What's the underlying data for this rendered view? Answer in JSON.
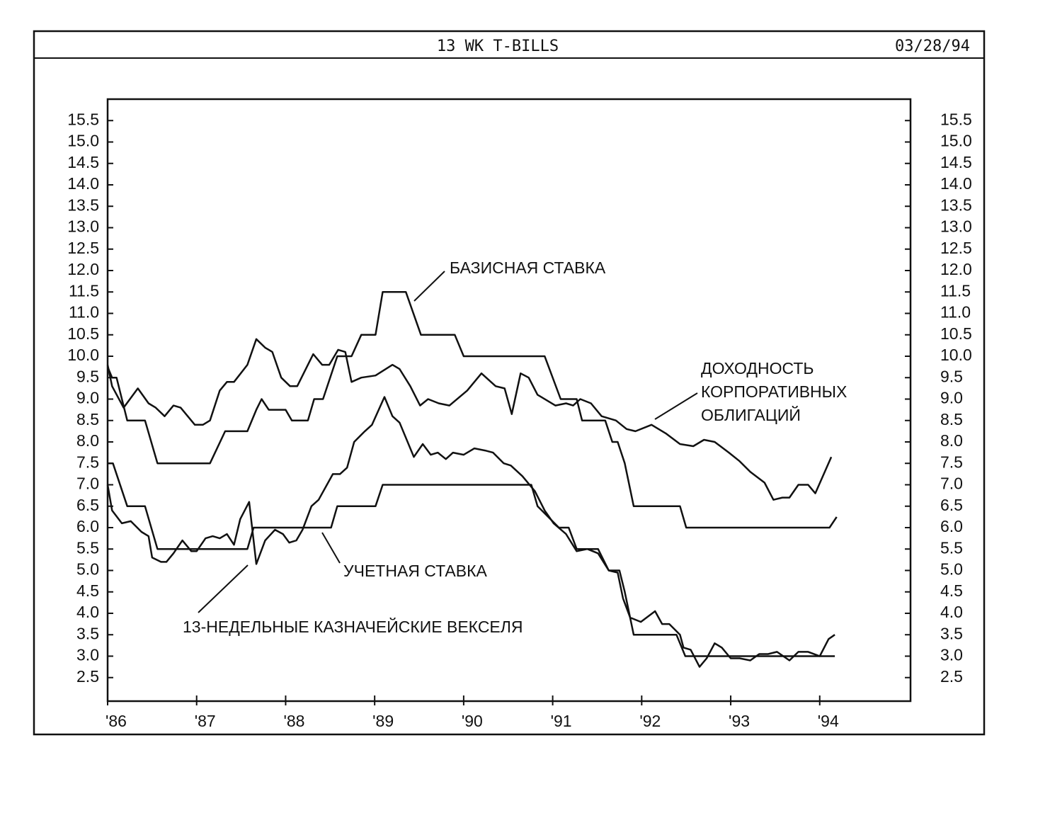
{
  "chart_data": {
    "type": "line",
    "title": "13 WK T-BILLS",
    "date": "03/28/94",
    "xlim": [
      1986,
      1995.02
    ],
    "xticks": [
      {
        "value": 1986,
        "label": "'86"
      },
      {
        "value": 1987,
        "label": "'87"
      },
      {
        "value": 1988,
        "label": "'88"
      },
      {
        "value": 1989,
        "label": "'89"
      },
      {
        "value": 1990,
        "label": "'90"
      },
      {
        "value": 1991,
        "label": "'91"
      },
      {
        "value": 1992,
        "label": "'92"
      },
      {
        "value": 1993,
        "label": "'93"
      },
      {
        "value": 1994,
        "label": "'94"
      }
    ],
    "ylim": [
      1.95,
      16.0
    ],
    "yticks": [
      2.5,
      {
        "value": 3,
        "label": "3.0"
      },
      3.5,
      {
        "value": 4,
        "label": "4.0"
      },
      4.5,
      {
        "value": 5,
        "label": "5.0"
      },
      5.5,
      {
        "value": 6,
        "label": "6.0"
      },
      6.5,
      {
        "value": 7,
        "label": "7.0"
      },
      7.5,
      {
        "value": 8,
        "label": "8.0"
      },
      8.5,
      {
        "value": 9,
        "label": "9.0"
      },
      9.5,
      {
        "value": 10,
        "label": "10.0"
      },
      10.5,
      {
        "value": 11,
        "label": "11.0"
      },
      11.5,
      {
        "value": 12,
        "label": "12.0"
      },
      12.5,
      {
        "value": 13,
        "label": "13.0"
      },
      13.5,
      {
        "value": 14,
        "label": "14.0"
      },
      14.5,
      {
        "value": 15,
        "label": "15.0"
      },
      15.5
    ],
    "y2lim": [
      1.95,
      16.0
    ],
    "y2ticks": [
      2.5,
      {
        "value": 3,
        "label": "3.0"
      },
      3.5,
      {
        "value": 4,
        "label": "4.0"
      },
      4.5,
      {
        "value": 5,
        "label": "5.0"
      },
      5.5,
      {
        "value": 6,
        "label": "6.0"
      },
      6.5,
      {
        "value": 7,
        "label": "7.0"
      },
      7.5,
      {
        "value": 8,
        "label": "8.0"
      },
      8.5,
      {
        "value": 9,
        "label": "9.0"
      },
      9.5,
      {
        "value": 10,
        "label": "10.0"
      },
      10.5,
      {
        "value": 11,
        "label": "11.0"
      },
      11.5,
      {
        "value": 12,
        "label": "12.0"
      },
      12.5,
      {
        "value": 13,
        "label": "13.0"
      },
      13.5,
      {
        "value": 14,
        "label": "14.0"
      },
      14.5,
      {
        "value": 15,
        "label": "15.0"
      },
      15.5
    ],
    "grid": false,
    "series": [
      {
        "label": [
          "БАЗИСНАЯ СТАВКА"
        ],
        "color": "#111111",
        "x": [
          1986.0,
          1986.05,
          1986.1,
          1986.22,
          1986.42,
          1986.56,
          1987.15,
          1987.32,
          1987.57,
          1987.67,
          1987.73,
          1987.81,
          1988.0,
          1988.07,
          1988.25,
          1988.32,
          1988.42,
          1988.58,
          1988.74,
          1988.85,
          1989.01,
          1989.09,
          1989.35,
          1989.52,
          1989.9,
          1990.0,
          1990.91,
          1991.09,
          1991.27,
          1991.33,
          1991.59,
          1991.67,
          1991.73,
          1991.81,
          1991.91,
          1992.43,
          1992.5,
          1994.11,
          1994.19
        ],
        "values": [
          9.75,
          9.5,
          9.5,
          8.5,
          8.5,
          7.5,
          7.5,
          8.25,
          8.25,
          8.75,
          9.0,
          8.75,
          8.75,
          8.5,
          8.5,
          9.0,
          9.0,
          10.0,
          10.0,
          10.5,
          10.5,
          11.5,
          11.5,
          10.5,
          10.5,
          10.0,
          10.0,
          9.0,
          9.0,
          8.5,
          8.5,
          8.0,
          8.0,
          7.5,
          6.5,
          6.5,
          6.0,
          6.0,
          6.25
        ]
      },
      {
        "label": [
          "ДОХОДНОСТЬ",
          "КОРПОРАТИВНЫХ",
          "ОБЛИГАЦИЙ"
        ],
        "color": "#111111",
        "x": [
          1986.0,
          1986.05,
          1986.18,
          1986.34,
          1986.46,
          1986.54,
          1986.64,
          1986.74,
          1986.82,
          1986.98,
          1987.07,
          1987.15,
          1987.26,
          1987.34,
          1987.42,
          1987.57,
          1987.67,
          1987.77,
          1987.85,
          1987.95,
          1988.05,
          1988.13,
          1988.31,
          1988.41,
          1988.49,
          1988.59,
          1988.67,
          1988.74,
          1988.85,
          1989.01,
          1989.2,
          1989.28,
          1989.4,
          1989.51,
          1989.6,
          1989.72,
          1989.84,
          1990.04,
          1990.2,
          1990.36,
          1990.46,
          1990.54,
          1990.64,
          1990.73,
          1990.83,
          1991.03,
          1991.15,
          1991.23,
          1991.31,
          1991.43,
          1991.55,
          1991.71,
          1991.83,
          1991.93,
          1992.11,
          1992.27,
          1992.43,
          1992.58,
          1992.7,
          1992.82,
          1992.98,
          1993.1,
          1993.22,
          1993.38,
          1993.48,
          1993.58,
          1993.66,
          1993.76,
          1993.87,
          1993.95,
          1994.13
        ],
        "values": [
          9.8,
          9.3,
          8.8,
          9.25,
          8.9,
          8.8,
          8.6,
          8.85,
          8.8,
          8.4,
          8.4,
          8.5,
          9.2,
          9.4,
          9.4,
          9.8,
          10.4,
          10.2,
          10.1,
          9.5,
          9.3,
          9.3,
          10.05,
          9.8,
          9.8,
          10.15,
          10.1,
          9.4,
          9.5,
          9.55,
          9.8,
          9.7,
          9.3,
          8.85,
          9.0,
          8.9,
          8.85,
          9.2,
          9.6,
          9.3,
          9.25,
          8.65,
          9.6,
          9.5,
          9.1,
          8.85,
          8.9,
          8.85,
          9.0,
          8.9,
          8.6,
          8.5,
          8.3,
          8.25,
          8.4,
          8.2,
          7.95,
          7.9,
          8.05,
          8.0,
          7.75,
          7.55,
          7.3,
          7.05,
          6.65,
          6.7,
          6.7,
          7.0,
          7.0,
          6.8,
          7.65
        ]
      },
      {
        "label": [
          "УЧЕТНАЯ СТАВКА"
        ],
        "color": "#111111",
        "x": [
          1986.0,
          1986.06,
          1986.22,
          1986.42,
          1986.56,
          1987.57,
          1987.64,
          1988.51,
          1988.58,
          1989.01,
          1989.09,
          1990.76,
          1990.83,
          1991.07,
          1991.18,
          1991.27,
          1991.51,
          1991.63,
          1991.75,
          1991.81,
          1991.91,
          1992.39,
          1992.49,
          1994.17
        ],
        "values": [
          7.5,
          7.5,
          6.5,
          6.5,
          5.5,
          5.5,
          6.0,
          6.0,
          6.5,
          6.5,
          7.0,
          7.0,
          6.5,
          6.0,
          6.0,
          5.5,
          5.5,
          5.0,
          5.0,
          4.5,
          3.5,
          3.5,
          3.0,
          3.0
        ]
      },
      {
        "label": [
          "13-НЕДЕЛЬНЫЕ КАЗНАЧЕЙСКИЕ ВЕКСЕЛЯ"
        ],
        "color": "#111111",
        "x": [
          1986.0,
          1986.05,
          1986.16,
          1986.26,
          1986.38,
          1986.46,
          1986.5,
          1986.6,
          1986.66,
          1986.74,
          1986.84,
          1986.94,
          1987.0,
          1987.1,
          1987.18,
          1987.26,
          1987.34,
          1987.42,
          1987.49,
          1987.59,
          1987.67,
          1987.77,
          1987.88,
          1987.97,
          1988.04,
          1988.12,
          1988.19,
          1988.29,
          1988.37,
          1988.53,
          1988.61,
          1988.69,
          1988.77,
          1988.89,
          1988.97,
          1989.11,
          1989.2,
          1989.28,
          1989.44,
          1989.54,
          1989.63,
          1989.71,
          1989.8,
          1989.88,
          1990.0,
          1990.12,
          1990.24,
          1990.33,
          1990.45,
          1990.53,
          1990.66,
          1990.8,
          1990.91,
          1991.01,
          1991.15,
          1991.27,
          1991.39,
          1991.51,
          1991.63,
          1991.73,
          1991.79,
          1991.87,
          1991.99,
          1992.15,
          1992.23,
          1992.31,
          1992.43,
          1992.47,
          1992.55,
          1992.65,
          1992.73,
          1992.82,
          1992.9,
          1993.0,
          1993.1,
          1993.22,
          1993.32,
          1993.42,
          1993.52,
          1993.66,
          1993.76,
          1993.87,
          1994.0,
          1994.1,
          1994.17
        ],
        "values": [
          7.0,
          6.4,
          6.1,
          6.15,
          5.9,
          5.8,
          5.3,
          5.2,
          5.2,
          5.4,
          5.7,
          5.45,
          5.45,
          5.75,
          5.8,
          5.75,
          5.85,
          5.6,
          6.2,
          6.6,
          5.15,
          5.7,
          5.95,
          5.85,
          5.65,
          5.7,
          5.95,
          6.5,
          6.65,
          7.25,
          7.25,
          7.4,
          8.0,
          8.25,
          8.4,
          9.05,
          8.6,
          8.45,
          7.65,
          7.95,
          7.7,
          7.75,
          7.6,
          7.75,
          7.7,
          7.85,
          7.8,
          7.75,
          7.5,
          7.45,
          7.2,
          6.85,
          6.4,
          6.1,
          5.85,
          5.45,
          5.5,
          5.4,
          5.0,
          4.95,
          4.35,
          3.9,
          3.8,
          4.05,
          3.75,
          3.75,
          3.5,
          3.2,
          3.15,
          2.75,
          2.95,
          3.3,
          3.2,
          2.95,
          2.95,
          2.9,
          3.05,
          3.05,
          3.1,
          2.9,
          3.1,
          3.1,
          3.0,
          3.4,
          3.5
        ]
      }
    ]
  }
}
